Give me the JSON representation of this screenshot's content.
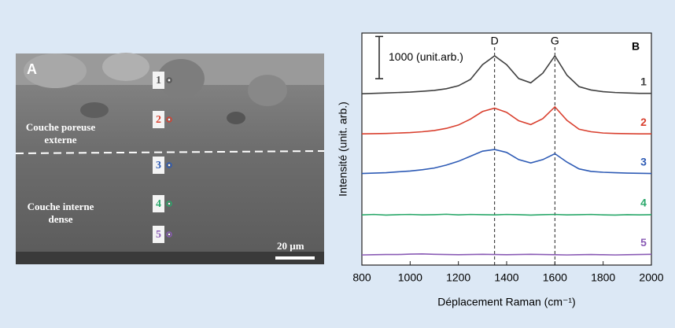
{
  "image_panel": {
    "label": "A",
    "outer_layer": "Couche poreuse externe",
    "inner_layer": "Couche interne dense",
    "points": [
      {
        "label": "1",
        "color": "#555555"
      },
      {
        "label": "2",
        "color": "#d9402f"
      },
      {
        "label": "3",
        "color": "#2e5bb5"
      },
      {
        "label": "4",
        "color": "#2aa86a"
      },
      {
        "label": "5",
        "color": "#8a5bb5"
      }
    ],
    "scale_bar": "20 µm"
  },
  "chart_data": {
    "type": "line",
    "panel_label": "B",
    "xlabel": "Déplacement Raman (cm⁻¹)",
    "ylabel": "Intensité (unit. arb.)",
    "x": [
      800,
      850,
      900,
      950,
      1000,
      1050,
      1100,
      1150,
      1200,
      1250,
      1300,
      1350,
      1400,
      1450,
      1500,
      1550,
      1600,
      1650,
      1700,
      1750,
      1800,
      1850,
      1900,
      1950,
      2000
    ],
    "xlim": [
      800,
      2000
    ],
    "xticks": [
      800,
      1000,
      1200,
      1400,
      1600,
      1800,
      2000
    ],
    "ylim": [
      0,
      5500
    ],
    "scale_bar": {
      "label": "1000 (unit.arb.)",
      "value": 1000
    },
    "annotations": [
      {
        "label": "D",
        "x": 1350
      },
      {
        "label": "G",
        "x": 1600
      }
    ],
    "series": [
      {
        "name": "1",
        "color": "#404040",
        "values": [
          4060,
          4070,
          4080,
          4090,
          4100,
          4120,
          4140,
          4180,
          4250,
          4400,
          4750,
          4960,
          4750,
          4420,
          4320,
          4550,
          4960,
          4500,
          4230,
          4150,
          4110,
          4090,
          4080,
          4070,
          4070
        ]
      },
      {
        "name": "2",
        "color": "#d9402f",
        "values": [
          3110,
          3115,
          3120,
          3130,
          3140,
          3160,
          3190,
          3240,
          3320,
          3460,
          3640,
          3720,
          3620,
          3420,
          3330,
          3470,
          3750,
          3430,
          3220,
          3160,
          3130,
          3120,
          3115,
          3110,
          3110
        ]
      },
      {
        "name": "3",
        "color": "#2e5bb5",
        "values": [
          2170,
          2180,
          2190,
          2210,
          2230,
          2260,
          2300,
          2370,
          2460,
          2580,
          2700,
          2740,
          2670,
          2500,
          2420,
          2500,
          2640,
          2440,
          2280,
          2220,
          2200,
          2190,
          2180,
          2175,
          2170
        ]
      },
      {
        "name": "4",
        "color": "#2aa86a",
        "values": [
          1190,
          1200,
          1185,
          1195,
          1200,
          1190,
          1195,
          1205,
          1190,
          1200,
          1195,
          1190,
          1200,
          1195,
          1185,
          1195,
          1200,
          1190,
          1195,
          1200,
          1190,
          1185,
          1195,
          1190,
          1195
        ]
      },
      {
        "name": "5",
        "color": "#8a5bb5",
        "values": [
          240,
          245,
          250,
          250,
          260,
          265,
          255,
          250,
          245,
          250,
          255,
          250,
          245,
          250,
          255,
          250,
          245,
          240,
          245,
          250,
          245,
          240,
          245,
          250,
          255
        ]
      }
    ]
  }
}
